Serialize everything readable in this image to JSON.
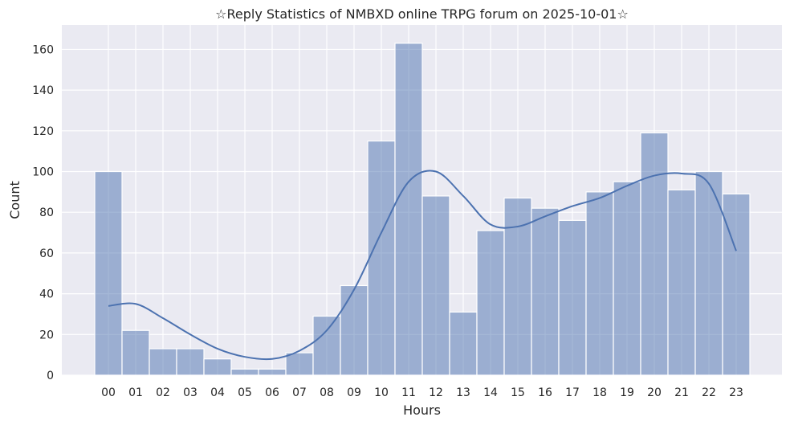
{
  "chart_data": {
    "type": "bar",
    "title": "☆Reply Statistics of NMBXD online TRPG forum on 2025-10-01☆",
    "xlabel": "Hours",
    "ylabel": "Count",
    "categories": [
      "00",
      "01",
      "02",
      "03",
      "04",
      "05",
      "06",
      "07",
      "08",
      "09",
      "10",
      "11",
      "12",
      "13",
      "14",
      "15",
      "16",
      "17",
      "18",
      "19",
      "20",
      "21",
      "22",
      "23"
    ],
    "values": [
      100,
      22,
      13,
      13,
      8,
      3,
      3,
      11,
      29,
      44,
      115,
      163,
      88,
      31,
      71,
      87,
      82,
      76,
      90,
      95,
      119,
      91,
      100,
      89
    ],
    "kde": [
      34,
      35,
      28,
      20,
      13,
      9,
      8,
      12,
      22,
      42,
      70,
      95,
      100,
      88,
      74,
      73,
      78,
      83,
      87,
      93,
      98,
      99,
      94,
      61
    ],
    "ylim": [
      0,
      172
    ],
    "yticks": [
      0,
      20,
      40,
      60,
      80,
      100,
      120,
      140,
      160
    ],
    "grid": true,
    "colors": {
      "background": "#eaeaf2",
      "bar_fill": "#4c72b0",
      "bar_opacity": 0.5,
      "line": "#4c72b0",
      "grid": "#ffffff"
    }
  }
}
